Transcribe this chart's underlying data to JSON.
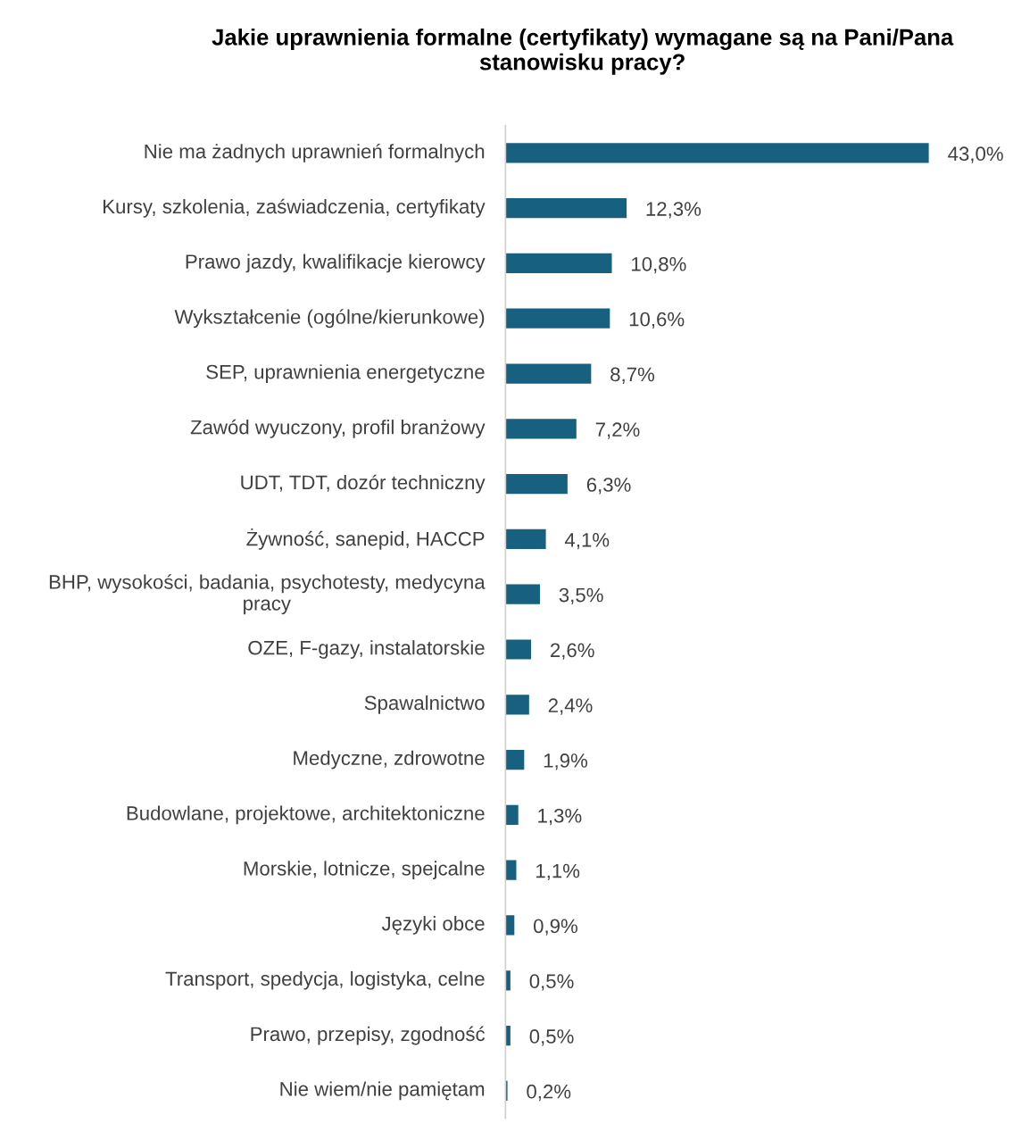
{
  "chart_data": {
    "type": "bar",
    "orientation": "horizontal",
    "title": "Jakie uprawnienia formalne (certyfikaty) wymagane są na Pani/Pana stanowisku pracy?",
    "categories": [
      "Nie ma żadnych uprawnień formalnych",
      "Kursy, szkolenia, zaświadczenia, certyfikaty",
      "Prawo jazdy, kwalifikacje kierowcy",
      "Wykształcenie (ogólne/kierunkowe)",
      "SEP, uprawnienia energetyczne",
      "Zawód wyuczony, profil branżowy",
      "UDT, TDT, dozór techniczny",
      "Żywność, sanepid, HACCP",
      "BHP, wysokości, badania, psychotesty, medycyna pracy",
      "OZE, F-gazy, instalatorskie",
      "Spawalnictwo",
      "Medyczne, zdrowotne",
      "Budowlane, projektowe, architektoniczne",
      "Morskie, lotnicze, spejcalne",
      "Języki obce",
      "Transport, spedycja, logistyka, celne",
      "Prawo, przepisy, zgodność",
      "Nie wiem/nie pamiętam"
    ],
    "values": [
      43.0,
      12.3,
      10.8,
      10.6,
      8.7,
      7.2,
      6.3,
      4.1,
      3.5,
      2.6,
      2.4,
      1.9,
      1.3,
      1.1,
      0.9,
      0.5,
      0.5,
      0.2
    ],
    "value_labels": [
      "43,0%",
      "12,3%",
      "10,8%",
      "10,6%",
      "8,7%",
      "7,2%",
      "6,3%",
      "4,1%",
      "3,5%",
      "2,6%",
      "2,4%",
      "1,9%",
      "1,3%",
      "1,1%",
      "0,9%",
      "0,5%",
      "0,5%",
      "0,2%"
    ],
    "color": "#17607f"
  }
}
